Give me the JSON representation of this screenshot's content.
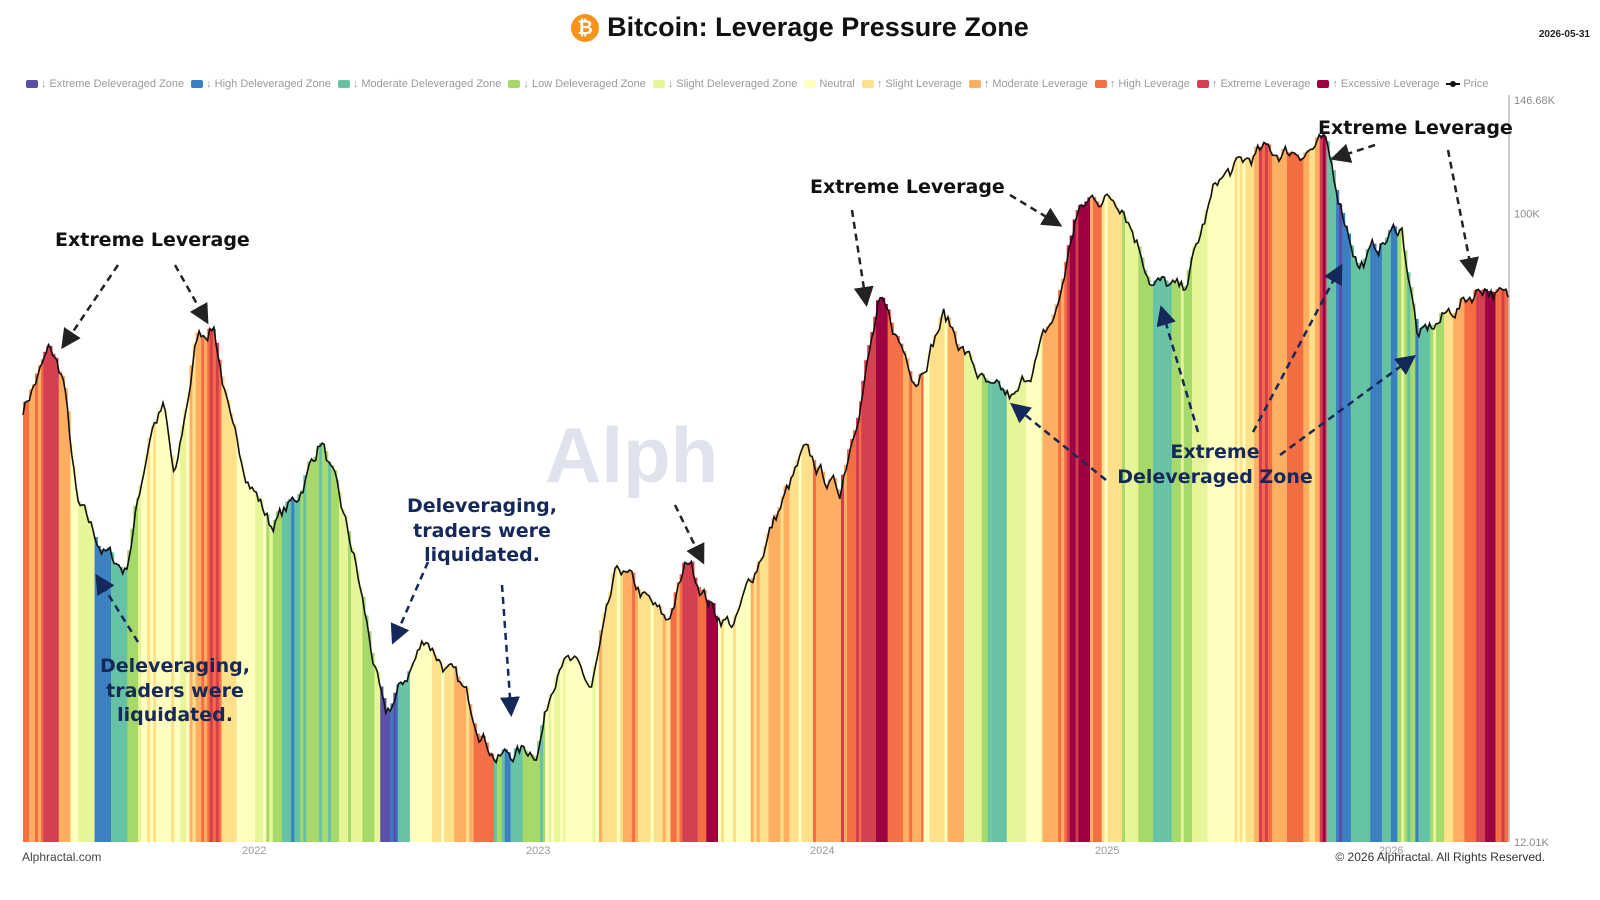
{
  "header": {
    "title": "Bitcoin: Leverage Pressure Zone",
    "date": "2026-05-31"
  },
  "legend": [
    {
      "label": "↓ Extreme Deleveraged Zone",
      "color": "#5a4fa8"
    },
    {
      "label": "↓ High Deleveraged Zone",
      "color": "#3a7fc0"
    },
    {
      "label": "↓ Moderate Deleveraged Zone",
      "color": "#66c2a5"
    },
    {
      "label": "↓ Low Deleveraged Zone",
      "color": "#a6d96a"
    },
    {
      "label": "↓ Slight Deleveraged Zone",
      "color": "#e6f598"
    },
    {
      "label": "Neutral",
      "color": "#ffffbf"
    },
    {
      "label": "↑ Slight Leverage",
      "color": "#fee08b"
    },
    {
      "label": "↑ Moderate Leverage",
      "color": "#fdae61"
    },
    {
      "label": "↑ High Leverage",
      "color": "#f46d43"
    },
    {
      "label": "↑ Extreme Leverage",
      "color": "#d53e4f"
    },
    {
      "label": "↑ Excessive Leverage",
      "color": "#9e0142"
    },
    {
      "label": "Price",
      "color": "#111111"
    }
  ],
  "chart_data": {
    "type": "line",
    "scale": "log",
    "y_axis_labels": [
      "146.68K",
      "100K",
      "12.01K"
    ],
    "ylim": [
      12010,
      146680
    ],
    "x_labels": [
      "2022",
      "2023",
      "2024",
      "2025",
      "2026"
    ],
    "xlim": [
      "2021-03-10",
      "2026-05-31"
    ],
    "series": [
      {
        "name": "Price",
        "color": "#111111",
        "points": [
          [
            "2021-03-10",
            52000
          ],
          [
            "2021-04-14",
            63000
          ],
          [
            "2021-05-01",
            57000
          ],
          [
            "2021-05-19",
            37000
          ],
          [
            "2021-06-22",
            32000
          ],
          [
            "2021-07-20",
            30000
          ],
          [
            "2021-08-22",
            49000
          ],
          [
            "2021-09-07",
            52000
          ],
          [
            "2021-09-21",
            40000
          ],
          [
            "2021-10-20",
            66000
          ],
          [
            "2021-11-10",
            69000
          ],
          [
            "2021-12-04",
            47000
          ],
          [
            "2022-01-22",
            35000
          ],
          [
            "2022-02-24",
            38000
          ],
          [
            "2022-03-28",
            47000
          ],
          [
            "2022-05-10",
            31000
          ],
          [
            "2022-06-18",
            18000
          ],
          [
            "2022-08-10",
            24000
          ],
          [
            "2022-09-30",
            19500
          ],
          [
            "2022-11-09",
            16000
          ],
          [
            "2022-12-31",
            16500
          ],
          [
            "2023-01-30",
            23000
          ],
          [
            "2023-03-10",
            20000
          ],
          [
            "2023-04-14",
            30000
          ],
          [
            "2023-06-15",
            25000
          ],
          [
            "2023-07-13",
            31000
          ],
          [
            "2023-08-17",
            26000
          ],
          [
            "2023-09-11",
            25000
          ],
          [
            "2023-10-24",
            34000
          ],
          [
            "2023-12-08",
            44000
          ],
          [
            "2024-01-23",
            39000
          ],
          [
            "2024-03-14",
            73000
          ],
          [
            "2024-05-01",
            58000
          ],
          [
            "2024-06-05",
            71000
          ],
          [
            "2024-08-05",
            54000
          ],
          [
            "2024-09-06",
            53000
          ],
          [
            "2024-10-29",
            72000
          ],
          [
            "2024-11-22",
            99000
          ],
          [
            "2024-12-17",
            106000
          ],
          [
            "2025-01-21",
            105000
          ],
          [
            "2025-02-28",
            80000
          ],
          [
            "2025-04-08",
            76000
          ],
          [
            "2025-05-22",
            111000
          ],
          [
            "2025-07-14",
            122000
          ],
          [
            "2025-08-14",
            123000
          ],
          [
            "2025-10-06",
            126000
          ],
          [
            "2025-11-21",
            84000
          ],
          [
            "2026-01-14",
            96000
          ],
          [
            "2026-02-05",
            65000
          ],
          [
            "2026-03-20",
            72000
          ],
          [
            "2026-05-01",
            79000
          ],
          [
            "2026-05-31",
            74000
          ]
        ]
      },
      {
        "name": "Leverage zone",
        "type": "heatmap-bands",
        "zones": [
          [
            "2021-03-10",
            "high"
          ],
          [
            "2021-04-05",
            "extreme"
          ],
          [
            "2021-04-25",
            "moderate"
          ],
          [
            "2021-05-10",
            "neutral"
          ],
          [
            "2021-05-20",
            "slight-delev"
          ],
          [
            "2021-06-10",
            "high-delev"
          ],
          [
            "2021-07-01",
            "mod-delev"
          ],
          [
            "2021-07-22",
            "low-delev"
          ],
          [
            "2021-08-05",
            "neutral"
          ],
          [
            "2021-10-10",
            "moderate"
          ],
          [
            "2021-10-25",
            "high"
          ],
          [
            "2021-11-05",
            "extreme"
          ],
          [
            "2021-11-20",
            "slight"
          ],
          [
            "2021-12-10",
            "neutral"
          ],
          [
            "2022-01-05",
            "slight-delev"
          ],
          [
            "2022-01-25",
            "low-delev"
          ],
          [
            "2022-02-10",
            "mod-delev"
          ],
          [
            "2022-03-10",
            "low-delev"
          ],
          [
            "2022-04-20",
            "slight-delev"
          ],
          [
            "2022-05-20",
            "low-delev"
          ],
          [
            "2022-06-12",
            "extreme-delev"
          ],
          [
            "2022-06-25",
            "high-delev"
          ],
          [
            "2022-07-05",
            "mod-delev"
          ],
          [
            "2022-07-20",
            "neutral"
          ],
          [
            "2022-08-10",
            "slight"
          ],
          [
            "2022-09-15",
            "moderate"
          ],
          [
            "2022-10-10",
            "high"
          ],
          [
            "2022-11-05",
            "low-delev"
          ],
          [
            "2022-11-15",
            "mod-delev"
          ],
          [
            "2022-12-15",
            "low-delev"
          ],
          [
            "2023-01-10",
            "slight-delev"
          ],
          [
            "2023-02-05",
            "neutral"
          ],
          [
            "2023-03-20",
            "slight"
          ],
          [
            "2023-04-20",
            "moderate"
          ],
          [
            "2023-05-10",
            "slight"
          ],
          [
            "2023-06-20",
            "high"
          ],
          [
            "2023-07-05",
            "extreme"
          ],
          [
            "2023-07-25",
            "high"
          ],
          [
            "2023-08-05",
            "excessive"
          ],
          [
            "2023-08-20",
            "neutral"
          ],
          [
            "2023-10-01",
            "slight"
          ],
          [
            "2023-10-20",
            "moderate"
          ],
          [
            "2023-11-20",
            "slight"
          ],
          [
            "2023-12-20",
            "moderate"
          ],
          [
            "2024-01-25",
            "high"
          ],
          [
            "2024-02-20",
            "extreme"
          ],
          [
            "2024-03-10",
            "excessive"
          ],
          [
            "2024-03-25",
            "high"
          ],
          [
            "2024-04-10",
            "moderate"
          ],
          [
            "2024-05-10",
            "slight"
          ],
          [
            "2024-06-10",
            "moderate"
          ],
          [
            "2024-07-01",
            "slight-delev"
          ],
          [
            "2024-07-20",
            "low-delev"
          ],
          [
            "2024-08-05",
            "mod-delev"
          ],
          [
            "2024-08-25",
            "slight-delev"
          ],
          [
            "2024-09-15",
            "neutral"
          ],
          [
            "2024-10-10",
            "moderate"
          ],
          [
            "2024-10-30",
            "high"
          ],
          [
            "2024-11-10",
            "extreme"
          ],
          [
            "2024-11-25",
            "excessive"
          ],
          [
            "2024-12-10",
            "high"
          ],
          [
            "2024-12-25",
            "slight"
          ],
          [
            "2025-01-20",
            "slight-delev"
          ],
          [
            "2025-02-10",
            "low-delev"
          ],
          [
            "2025-03-01",
            "mod-delev"
          ],
          [
            "2025-03-25",
            "low-delev"
          ],
          [
            "2025-04-20",
            "slight-delev"
          ],
          [
            "2025-05-10",
            "neutral"
          ],
          [
            "2025-06-20",
            "slight"
          ],
          [
            "2025-07-05",
            "moderate"
          ],
          [
            "2025-07-15",
            "high"
          ],
          [
            "2025-08-01",
            "moderate"
          ],
          [
            "2025-08-20",
            "high"
          ],
          [
            "2025-09-10",
            "slight"
          ],
          [
            "2025-09-25",
            "moderate"
          ],
          [
            "2025-10-01",
            "extreme"
          ],
          [
            "2025-10-10",
            "mod-delev"
          ],
          [
            "2025-10-22",
            "high-delev"
          ],
          [
            "2025-11-10",
            "mod-delev"
          ],
          [
            "2025-12-05",
            "high-delev"
          ],
          [
            "2025-12-20",
            "mod-delev"
          ],
          [
            "2026-01-10",
            "low-delev"
          ],
          [
            "2026-02-01",
            "mod-delev"
          ],
          [
            "2026-02-20",
            "low-delev"
          ],
          [
            "2026-03-10",
            "slight"
          ],
          [
            "2026-03-25",
            "moderate"
          ],
          [
            "2026-04-05",
            "high"
          ],
          [
            "2026-04-20",
            "extreme"
          ],
          [
            "2026-05-05",
            "excessive"
          ],
          [
            "2026-05-15",
            "high"
          ],
          [
            "2026-05-31",
            "end"
          ]
        ]
      }
    ]
  },
  "annotations": {
    "extreme_leverage_1": "Extreme Leverage",
    "extreme_leverage_2": "Extreme Leverage",
    "extreme_leverage_3": "Extreme Leverage",
    "delev_1_line1": "Deleveraging,",
    "delev_1_line2": "traders were",
    "delev_1_line3": "liquidated.",
    "delev_2_line1": "Deleveraging,",
    "delev_2_line2": "traders were",
    "delev_2_line3": "liquidated.",
    "extreme_delev_line1": "Extreme",
    "extreme_delev_line2": "Deleveraged Zone"
  },
  "footer": {
    "left": "Alphractal.com",
    "right": "© 2026 Alphractal. All Rights Reserved."
  },
  "watermark": "Alph"
}
